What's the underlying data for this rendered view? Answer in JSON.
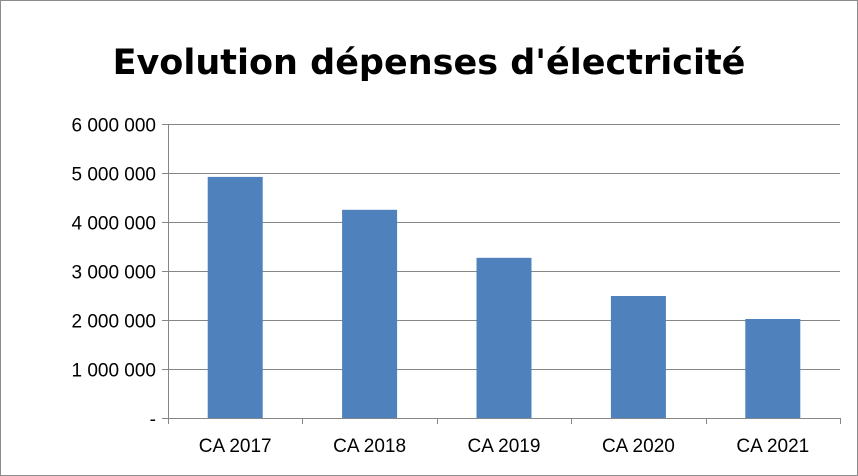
{
  "chart_data": {
    "type": "bar",
    "title": "Evolution dépenses d'électricité",
    "categories": [
      "CA 2017",
      "CA 2018",
      "CA 2019",
      "CA 2020",
      "CA 2021"
    ],
    "values": [
      4920000,
      4250000,
      3270000,
      2490000,
      2020000
    ],
    "ylim": [
      0,
      6000000
    ],
    "yticks": [
      0,
      1000000,
      2000000,
      3000000,
      4000000,
      5000000,
      6000000
    ],
    "ytick_labels": [
      "-",
      "1 000 000",
      "2 000 000",
      "3 000 000",
      "4 000 000",
      "5 000 000",
      "6 000 000"
    ],
    "xlabel": "",
    "ylabel": "",
    "grid": true,
    "legend": "none",
    "bar_color": "#4f81bd",
    "grid_color": "#868686"
  }
}
